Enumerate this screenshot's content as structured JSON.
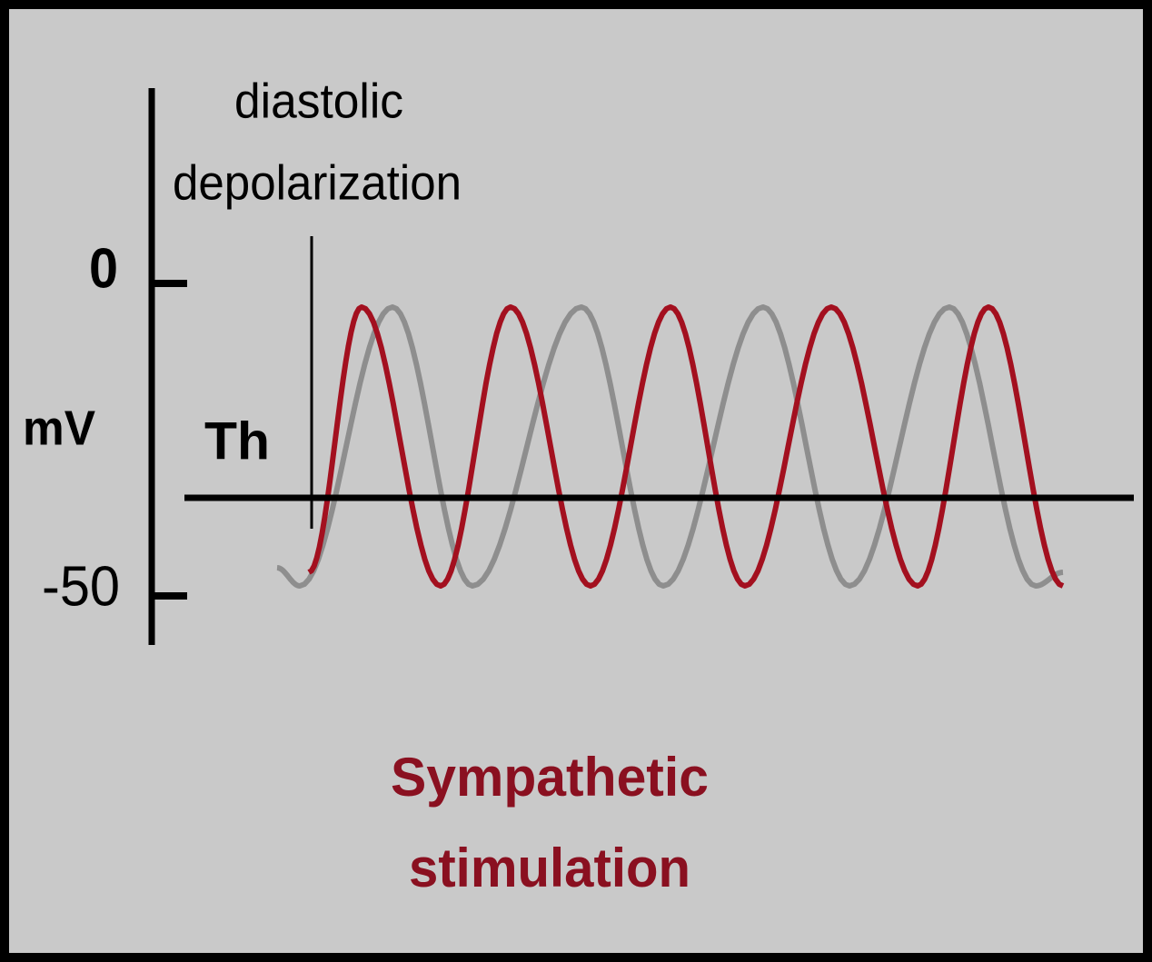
{
  "title": {
    "line1": "diastolic",
    "line2": "depolarization"
  },
  "axis": {
    "unit": "mV",
    "ticks": [
      0,
      -50
    ]
  },
  "threshold_label": "Th",
  "caption": {
    "line1": "Sympathetic",
    "line2": "stimulation"
  }
}
